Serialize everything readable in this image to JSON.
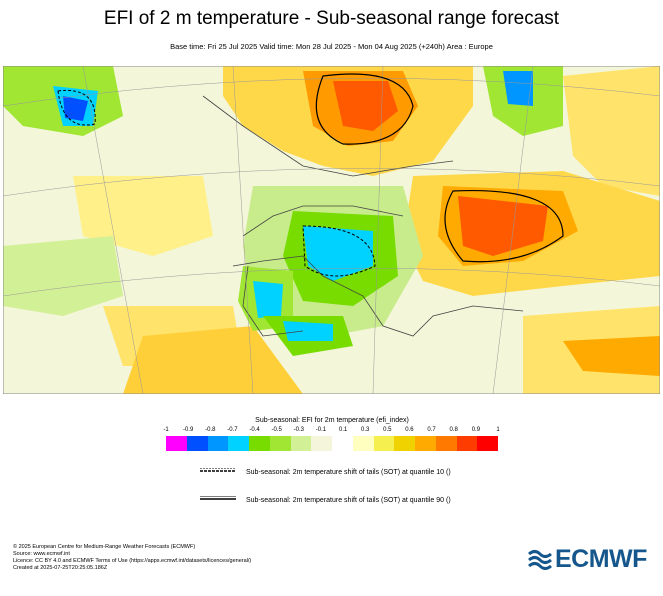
{
  "header": {
    "title": "EFI of 2 m temperature - Sub-seasonal range forecast",
    "subtitle": "Base time: Fri 25 Jul 2025 Valid time: Mon 28 Jul 2025 - Mon 04 Aug 2025 (+240h) Area : Europe"
  },
  "legend": {
    "title": "Sub-seasonal: EFI for 2m temperature (efi_index)",
    "ticks": [
      "-1",
      "-0.9",
      "-0.8",
      "-0.7",
      "-0.4",
      "-0.5",
      "-0.3",
      "-0.1",
      "0.1",
      "0.3",
      "0.5",
      "0.6",
      "0.7",
      "0.8",
      "0.9",
      "1"
    ],
    "colors": [
      "#ff00ff",
      "#0050ff",
      "#0096ff",
      "#00d2ff",
      "#78dc00",
      "#a0e632",
      "#d2f096",
      "#f5f5dc",
      "#ffffff",
      "#ffffc0",
      "#f5f050",
      "#f0d200",
      "#ffaa00",
      "#ff7800",
      "#ff3c00",
      "#ff0000"
    ]
  },
  "sot": {
    "q10_label": "Sub-seasonal: 2m temperature shift of tails (SOT) at quantile 10 ()",
    "q90_label": "Sub-seasonal: 2m temperature shift of tails (SOT) at quantile 90 ()"
  },
  "footer": {
    "lines": [
      "© 2025 European Centre for Medium-Range Weather Forecasts (ECMWF)",
      "Source: www.ecmwf.int",
      "Licence: CC BY 4.0 and ECMWF Terms of Use (https://apps.ecmwf.int/datasets/licences/general/)",
      "Created at 2025-07-25T20:25:05.186Z"
    ]
  },
  "logo": {
    "text": "ECMWF",
    "color": "#15578c"
  },
  "map": {
    "region": "Europe",
    "land_fill": "#f5f5dc",
    "sea_fill": "#ffffff",
    "anomaly_colors": {
      "warm_strong": "#ff3c00",
      "warm": "#ffaa00",
      "warm_weak": "#f5f050",
      "cold_weak": "#a0e632",
      "cold": "#00d2ff",
      "cold_strong": "#0096ff"
    }
  }
}
